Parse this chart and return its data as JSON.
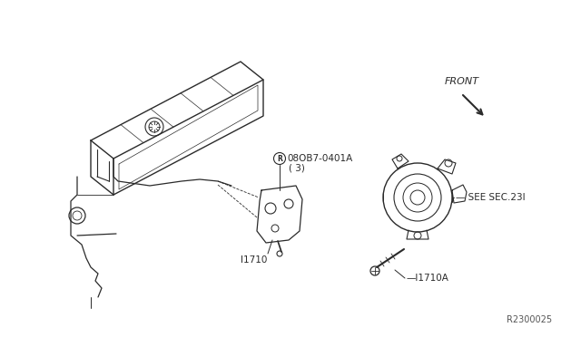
{
  "background_color": "#ffffff",
  "line_color": "#2a2a2a",
  "text_color": "#2a2a2a",
  "figsize": [
    6.4,
    3.72
  ],
  "dpi": 100,
  "labels": {
    "bolt_part": "08OB7-0401A",
    "bolt_qty": "( 3)",
    "bracket": "l1710",
    "alt_bolt": "— l1710A",
    "alt_ref": "— SEE SEC.23I",
    "front": "FRONT",
    "ref_code": "R2300025"
  }
}
